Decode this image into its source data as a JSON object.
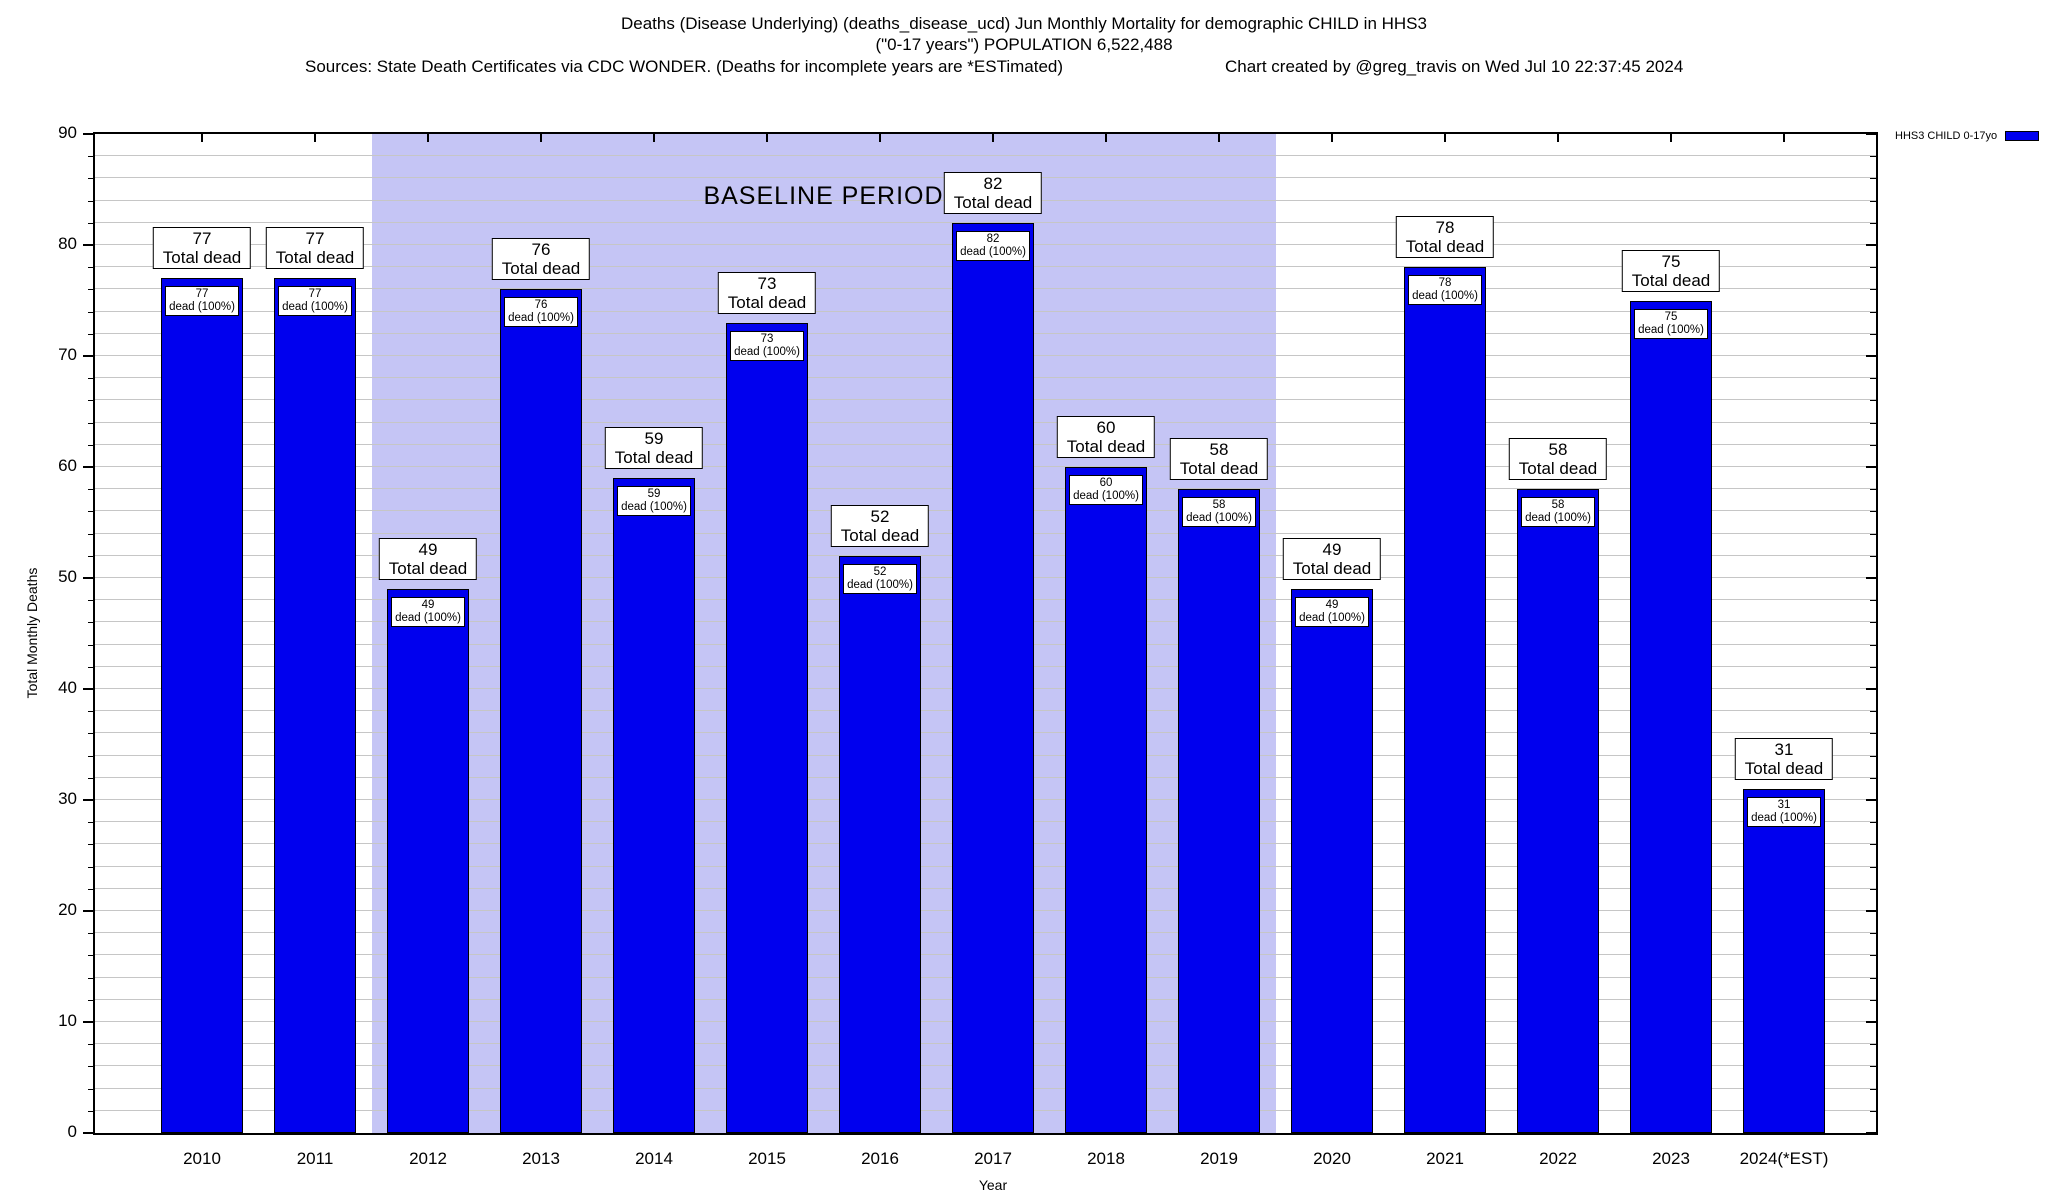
{
  "header": {
    "title_line1": "Deaths (Disease Underlying) (deaths_disease_ucd) Jun Monthly Mortality for demographic CHILD in HHS3",
    "title_line2": "(\"0-17 years\") POPULATION 6,522,488",
    "sources_note": "Sources: State Death Certificates via CDC WONDER. (Deaths for incomplete years are *ESTimated)",
    "credit": "Chart created by @greg_travis on Wed Jul 10 22:37:45 2024"
  },
  "legend": {
    "label": "HHS3 CHILD 0-17yo",
    "swatch_color": "#0000EE"
  },
  "chart_data": {
    "type": "bar",
    "title": "Deaths (Disease Underlying) (deaths_disease_ucd) Jun Monthly Mortality for demographic CHILD in HHS3",
    "subtitle": "(\"0-17 years\") POPULATION 6,522,488",
    "categories": [
      "2010",
      "2011",
      "2012",
      "2013",
      "2014",
      "2015",
      "2016",
      "2017",
      "2018",
      "2019",
      "2020",
      "2021",
      "2022",
      "2023",
      "2024(*EST)"
    ],
    "values": [
      77,
      77,
      49,
      76,
      59,
      73,
      52,
      82,
      60,
      58,
      49,
      78,
      58,
      75,
      31
    ],
    "series": [
      {
        "name": "HHS3 CHILD 0-17yo",
        "values": [
          77,
          77,
          49,
          76,
          59,
          73,
          52,
          82,
          60,
          58,
          49,
          78,
          58,
          75,
          31
        ]
      }
    ],
    "xlabel": "Year",
    "ylabel": "Total Monthly Deaths",
    "ylim": [
      0,
      90
    ],
    "ytick_step": 10,
    "minor_grid_step": 2,
    "grid": true,
    "legend_position": "top-right-outside",
    "bar_color": "#0000EE",
    "gridline_color": "#C6C6C6",
    "baseline_period": {
      "label": "BASELINE PERIOD",
      "start_category": "2012",
      "end_category": "2019",
      "fill_color": "#C5C5F5"
    },
    "bar_top_label_line2": "Total dead",
    "bar_inner_label_line2": "dead (100%)"
  }
}
